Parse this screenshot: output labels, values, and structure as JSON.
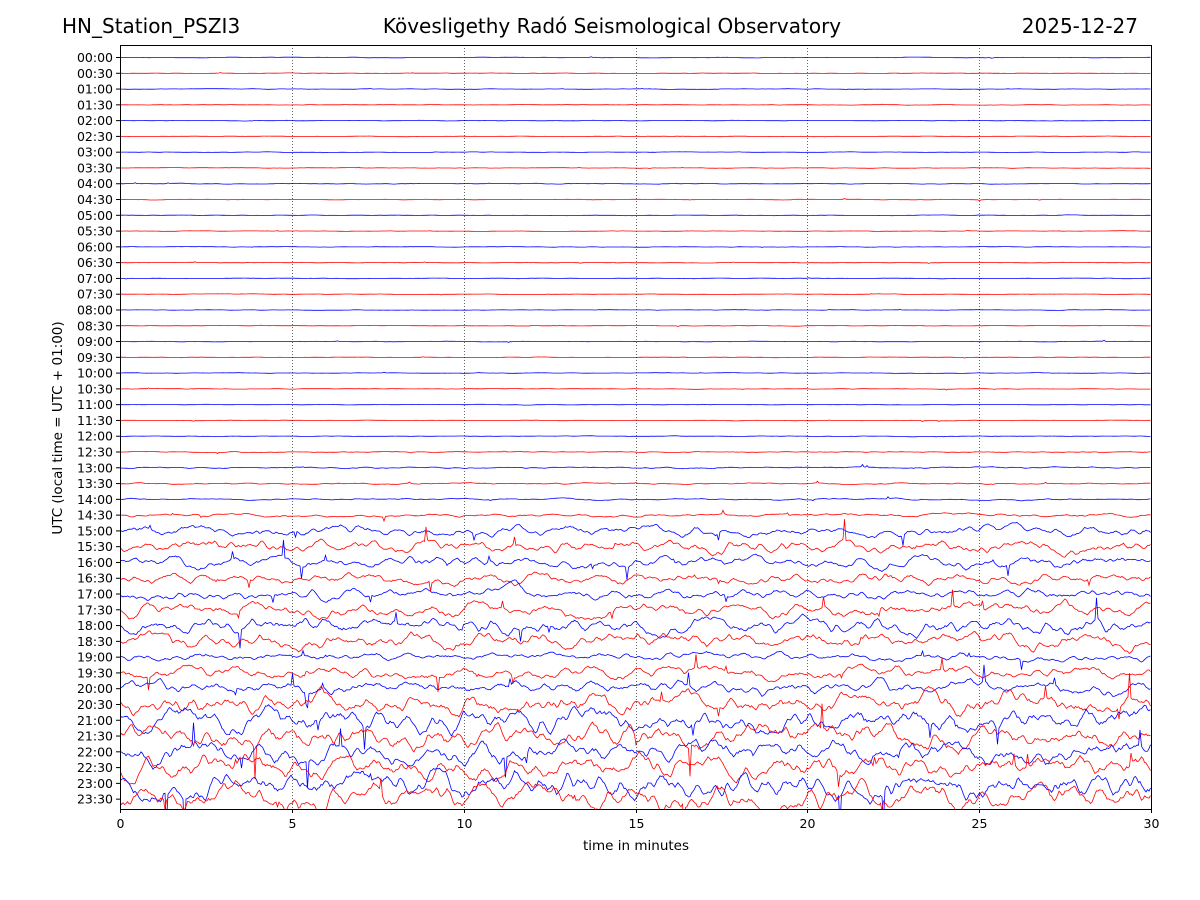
{
  "header": {
    "station": "HN_Station_PSZI3",
    "observatory": "Kövesligethy Radó Seismological Observatory",
    "date": "2025-12-27"
  },
  "chart_data": {
    "type": "line",
    "title": "Kövesligethy Radó Seismological Observatory",
    "xlabel": "time in minutes",
    "ylabel": "UTC (local time = UTC + 01:00)",
    "xlim": [
      0,
      30
    ],
    "xticks": [
      0,
      5,
      10,
      15,
      20,
      25,
      30
    ],
    "grid": "vertical dotted at every 5 minutes",
    "colors": {
      "even_rows": "#0000ff",
      "odd_rows": "#ff0000",
      "grid": "#000000"
    },
    "rows": [
      "00:00",
      "00:30",
      "01:00",
      "01:30",
      "02:00",
      "02:30",
      "03:00",
      "03:30",
      "04:00",
      "04:30",
      "05:00",
      "05:30",
      "06:00",
      "06:30",
      "07:00",
      "07:30",
      "08:00",
      "08:30",
      "09:00",
      "09:30",
      "10:00",
      "10:30",
      "11:00",
      "11:30",
      "12:00",
      "12:30",
      "13:00",
      "13:30",
      "14:00",
      "14:30",
      "15:00",
      "15:30",
      "16:00",
      "16:30",
      "17:00",
      "17:30",
      "18:00",
      "18:30",
      "19:00",
      "19:30",
      "20:00",
      "20:30",
      "21:00",
      "21:30",
      "22:00",
      "22:30",
      "23:00",
      "23:30"
    ],
    "relative_noise_level": [
      0.05,
      0.05,
      0.05,
      0.05,
      0.05,
      0.05,
      0.05,
      0.05,
      0.06,
      0.05,
      0.05,
      0.05,
      0.05,
      0.05,
      0.05,
      0.05,
      0.05,
      0.05,
      0.05,
      0.05,
      0.05,
      0.05,
      0.05,
      0.05,
      0.06,
      0.09,
      0.14,
      0.14,
      0.16,
      0.32,
      1.0,
      1.2,
      1.1,
      1.1,
      1.0,
      1.3,
      1.5,
      1.5,
      0.8,
      1.2,
      1.3,
      2.0,
      2.2,
      2.2,
      2.1,
      2.2,
      2.4,
      2.4
    ]
  }
}
